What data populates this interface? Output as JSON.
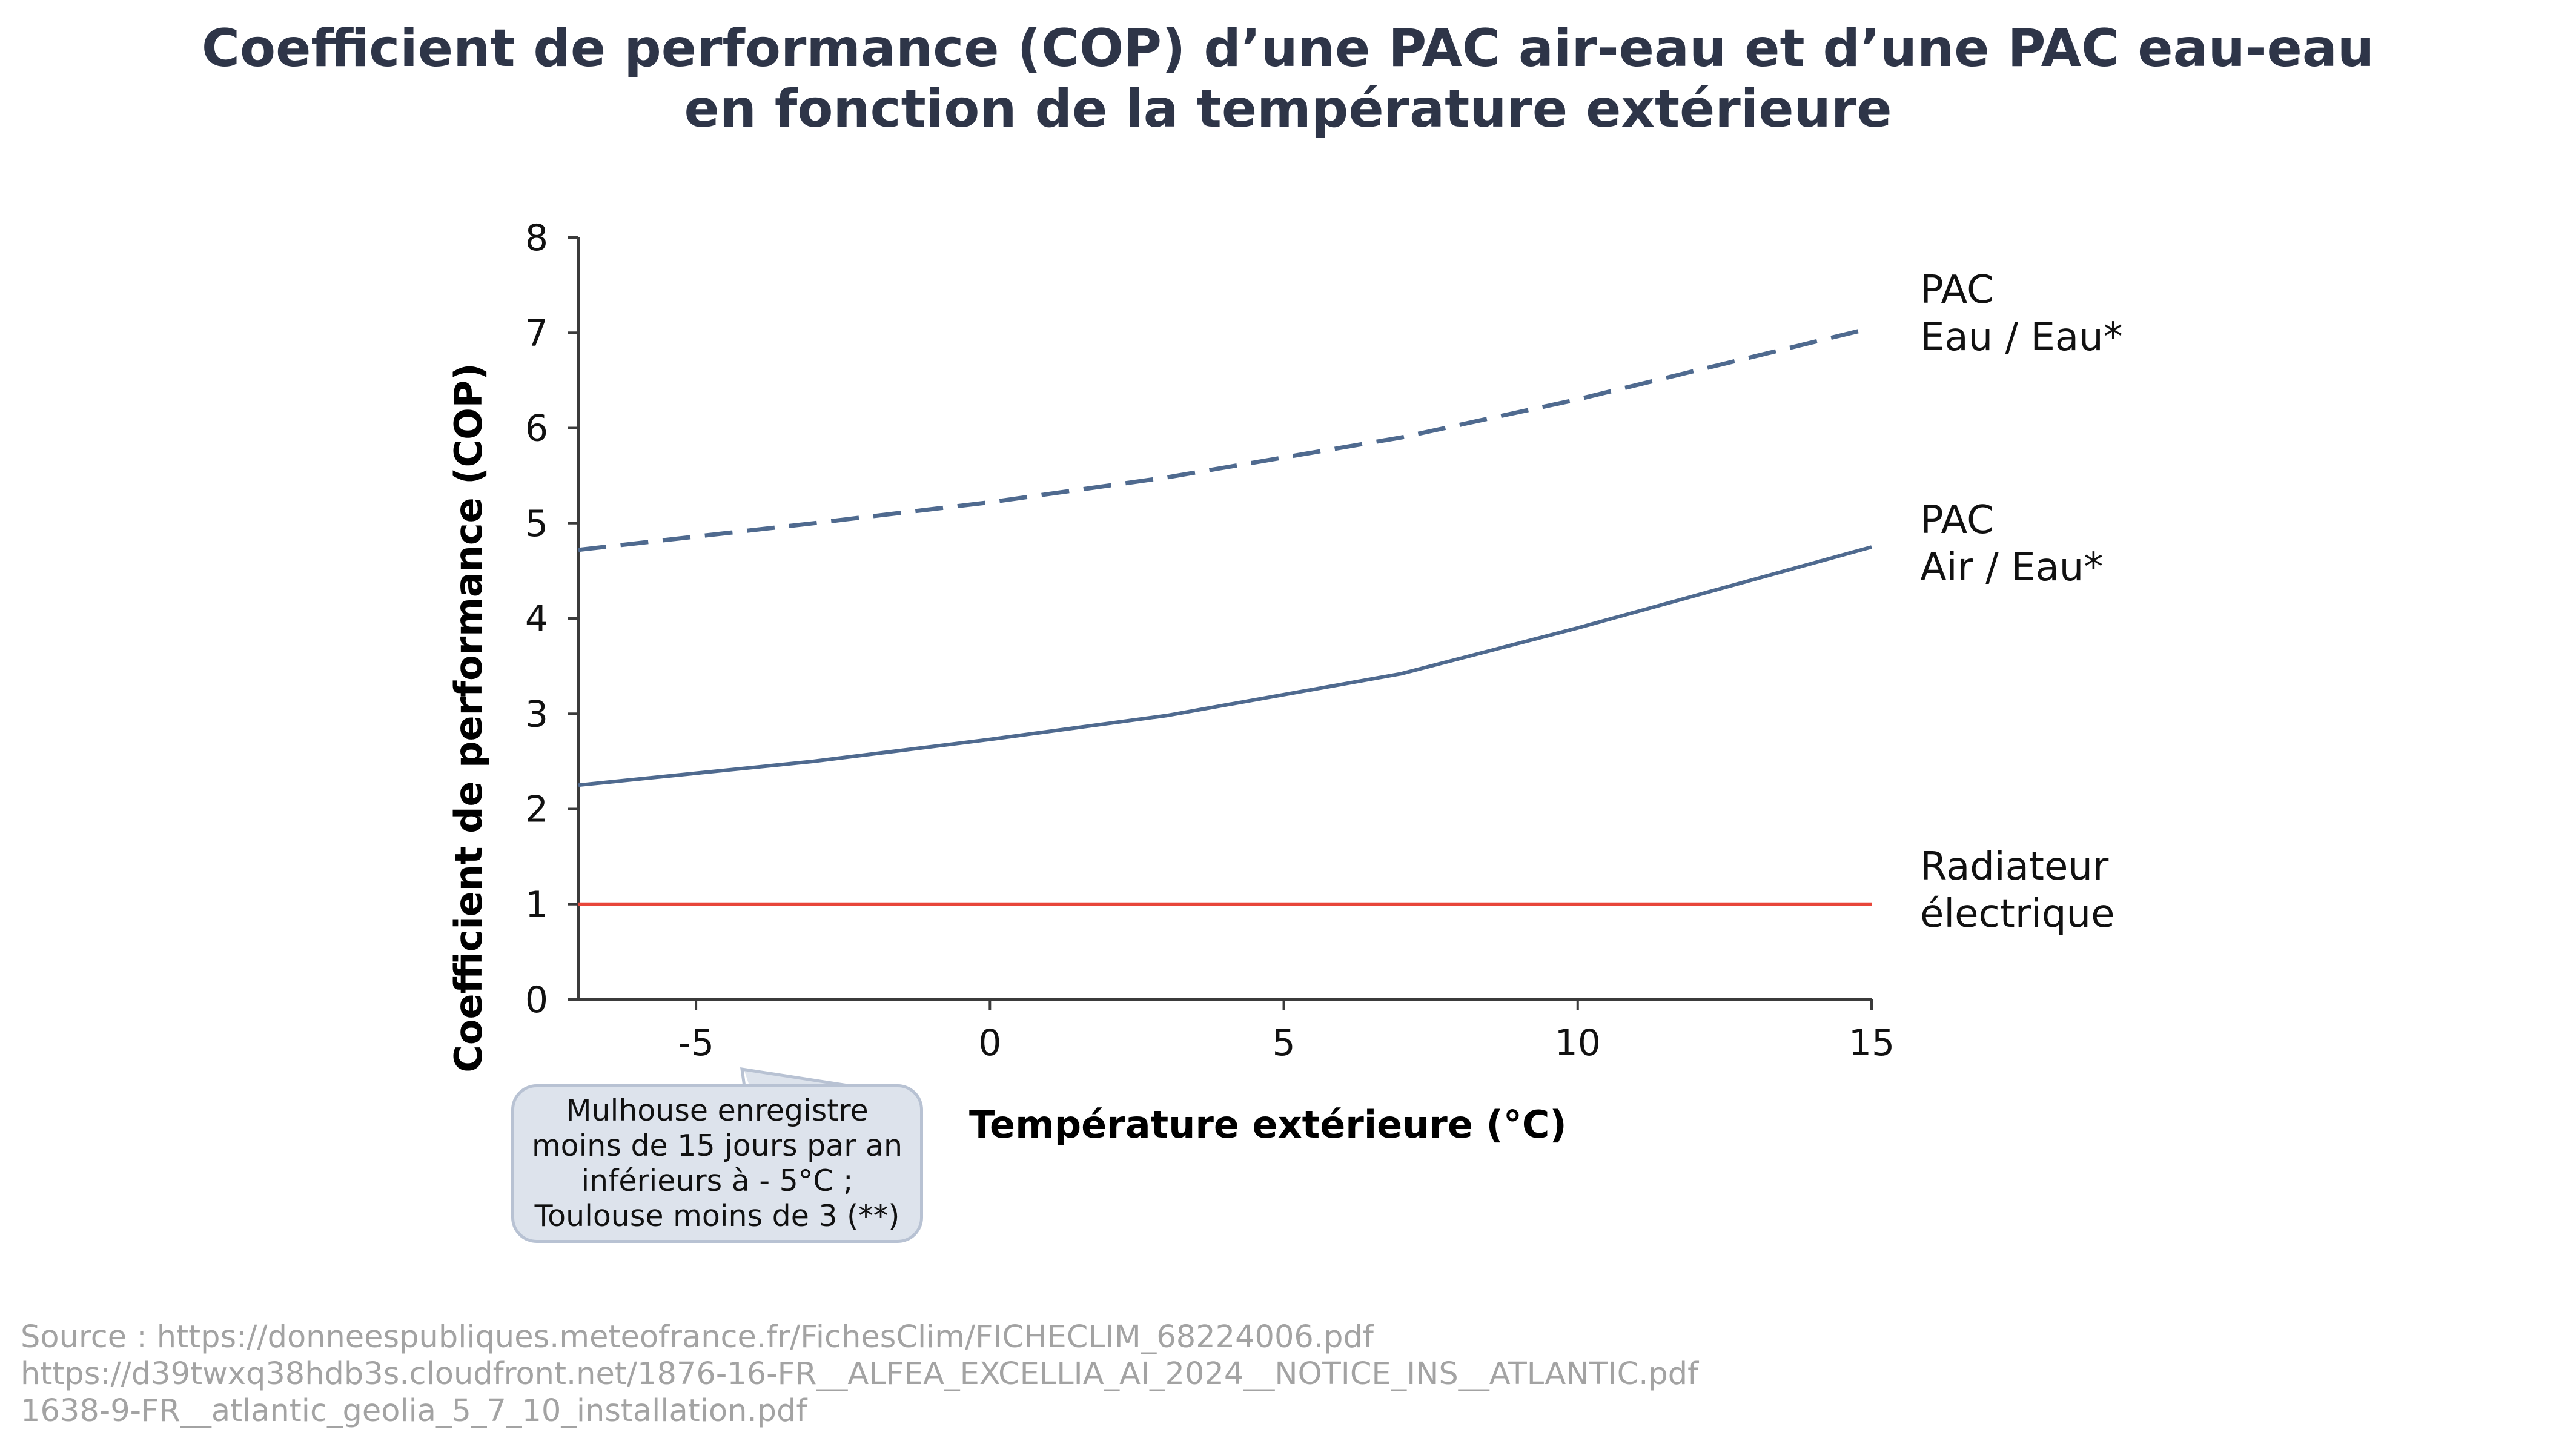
{
  "title_lines": [
    "Coefficient de performance (COP) d’une PAC air-eau et d’une PAC eau-eau",
    "en fonction de la température extérieure"
  ],
  "chart_data": {
    "type": "line",
    "title": "Coefficient de performance (COP) d’une PAC air-eau et d’une PAC eau-eau en fonction de la température extérieure",
    "xlabel": "Température extérieure (°C)",
    "ylabel": "Coefficient de performance (COP)",
    "xlim": [
      -7,
      15
    ],
    "ylim": [
      0,
      8
    ],
    "xticks": [
      -5,
      0,
      5,
      10,
      15
    ],
    "yticks": [
      0,
      1,
      2,
      3,
      4,
      5,
      6,
      7,
      8
    ],
    "grid": false,
    "legend": "direct labels at right end of lines",
    "series": [
      {
        "name_lines": [
          "PAC",
          "Eau / Eau*"
        ],
        "style": "dashed",
        "color": "#4f6a8f",
        "x": [
          -7,
          -3,
          0,
          3,
          7,
          10,
          15
        ],
        "y": [
          4.72,
          5.0,
          5.22,
          5.48,
          5.9,
          6.3,
          7.05
        ]
      },
      {
        "name_lines": [
          "PAC",
          "Air / Eau*"
        ],
        "style": "solid",
        "color": "#4f6a8f",
        "x": [
          -7,
          -3,
          0,
          3,
          7,
          10,
          15
        ],
        "y": [
          2.25,
          2.5,
          2.73,
          2.98,
          3.42,
          3.9,
          4.75
        ]
      },
      {
        "name_lines": [
          "Radiateur",
          "électrique"
        ],
        "style": "solid",
        "color": "#e8463a",
        "x": [
          -7,
          15
        ],
        "y": [
          1,
          1
        ]
      }
    ]
  },
  "callout_lines": [
    "Mulhouse enregistre",
    "moins de 15 jours par an",
    "inférieurs à - 5°C ;",
    "Toulouse moins de 3 (**)"
  ],
  "source_lines": [
    "Source : https://donneespubliques.meteofrance.fr/FichesClim/FICHECLIM_68224006.pdf",
    "https://d39twxq38hdb3s.cloudfront.net/1876-16-FR__ALFEA_EXCELLIA_AI_2024__NOTICE_INS__ATLANTIC.pdf",
    "1638-9-FR__atlantic_geolia_5_7_10_installation.pdf"
  ]
}
